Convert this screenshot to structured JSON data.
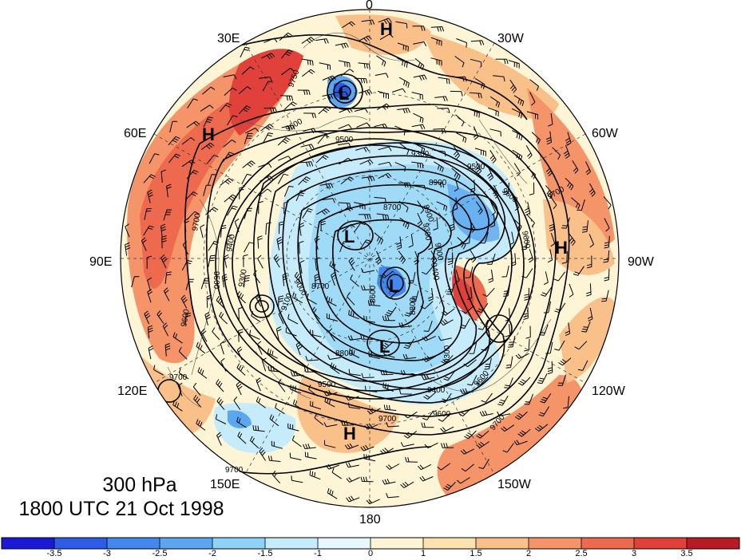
{
  "caption": {
    "level": "300 hPa",
    "time": "1800 UTC 21 Oct 1998"
  },
  "longitude_labels": [
    "0",
    "30W",
    "60W",
    "90W",
    "120W",
    "150W",
    "180",
    "150E",
    "120E",
    "90E",
    "60E",
    "30E"
  ],
  "pressure_systems": [
    "H",
    "H",
    "H",
    "H",
    "L",
    "L",
    "L",
    "L"
  ],
  "contour_labels": [
    "9750",
    "9600",
    "9500",
    "9300",
    "8900",
    "9500",
    "9600",
    "9700",
    "9700",
    "9600",
    "9400",
    "9300",
    "9500",
    "9600",
    "9400",
    "9300",
    "9000",
    "9100",
    "8700",
    "8600",
    "8800",
    "9500",
    "9400",
    "9600",
    "9700",
    "9600",
    "9300",
    "9700",
    "9700",
    "9700",
    "8700",
    "8800",
    "8900",
    "9000"
  ],
  "colorbar": {
    "labels": [
      "-3.5",
      "-3",
      "-2.5",
      "-2",
      "-1.5",
      "-1",
      "0",
      "1",
      "1.5",
      "2",
      "2.5",
      "3",
      "3.5"
    ],
    "colors": [
      "#1a1ad6",
      "#2d5ce6",
      "#4288ee",
      "#5aa6f0",
      "#8ed3f5",
      "#c6ecfb",
      "#e6f7fd",
      "#fdf5d6",
      "#fde2b0",
      "#f9c08a",
      "#f49468",
      "#ee6a4e",
      "#e0413a",
      "#b71c24"
    ]
  },
  "accent_colors": {
    "warm": "#f49468",
    "cold": "#8ed3f5",
    "contour": "#000000"
  }
}
